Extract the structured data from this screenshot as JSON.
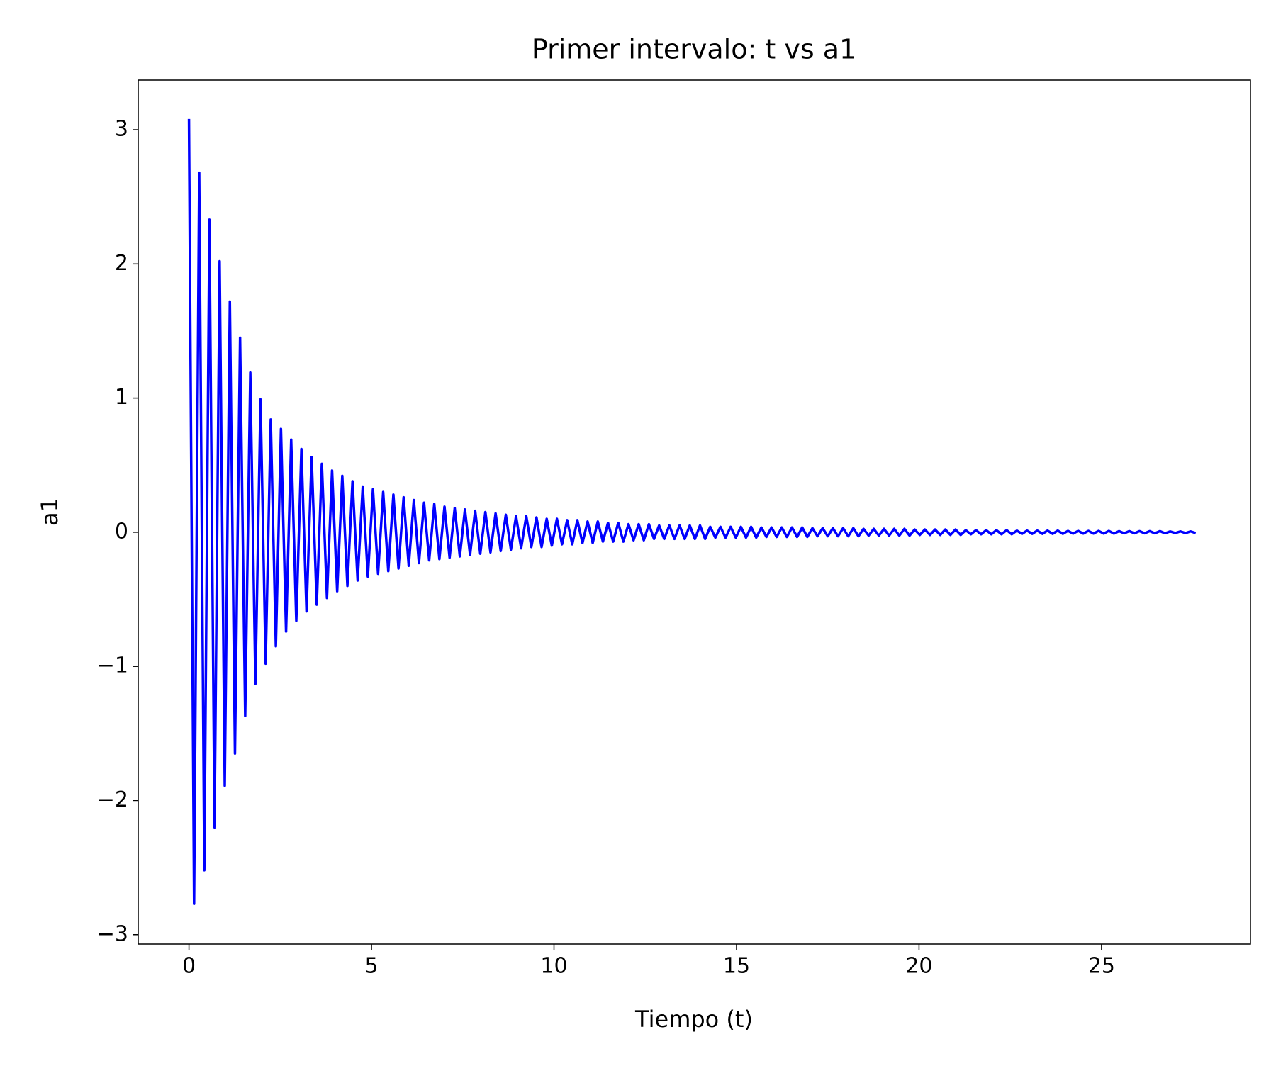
{
  "chart_data": {
    "type": "line",
    "title": "Primer intervalo: t vs a1",
    "x_label": "Tiempo (t)",
    "y_label": "a1",
    "xlim": [
      -1.39,
      29.08
    ],
    "ylim": [
      -3.07,
      3.37
    ],
    "xticks": [
      0,
      5,
      10,
      15,
      20,
      25
    ],
    "yticks": [
      {
        "value": -3,
        "label": "−3"
      },
      {
        "value": -2,
        "label": "−2"
      },
      {
        "value": -1,
        "label": "−1"
      },
      0,
      1,
      2,
      3
    ],
    "x": [
      0,
      0.14,
      0.28,
      0.42,
      0.56,
      0.7,
      0.84,
      0.98,
      1.12,
      1.26,
      1.4,
      1.54,
      1.68,
      1.82,
      1.96,
      2.1,
      2.24,
      2.38,
      2.52,
      2.66,
      2.8,
      2.94,
      3.08,
      3.22,
      3.36,
      3.5,
      3.64,
      3.78,
      3.92,
      4.06,
      4.2,
      4.34,
      4.48,
      4.62,
      4.76,
      4.9,
      5.04,
      5.18,
      5.32,
      5.46,
      5.6,
      5.74,
      5.88,
      6.02,
      6.16,
      6.3,
      6.44,
      6.58,
      6.72,
      6.86,
      7,
      7.14,
      7.28,
      7.42,
      7.56,
      7.7,
      7.84,
      7.98,
      8.12,
      8.26,
      8.4,
      8.54,
      8.68,
      8.82,
      8.96,
      9.1,
      9.24,
      9.38,
      9.52,
      9.66,
      9.8,
      9.94,
      10.08,
      10.22,
      10.36,
      10.5,
      10.64,
      10.78,
      10.92,
      11.06,
      11.2,
      11.34,
      11.48,
      11.62,
      11.76,
      11.9,
      12.04,
      12.18,
      12.32,
      12.46,
      12.6,
      12.74,
      12.88,
      13.02,
      13.16,
      13.3,
      13.44,
      13.58,
      13.72,
      13.86,
      14,
      14.14,
      14.28,
      14.42,
      14.56,
      14.7,
      14.84,
      14.98,
      15.12,
      15.26,
      15.4,
      15.54,
      15.68,
      15.82,
      15.96,
      16.1,
      16.24,
      16.38,
      16.52,
      16.66,
      16.8,
      16.94,
      17.08,
      17.22,
      17.36,
      17.5,
      17.64,
      17.78,
      17.92,
      18.06,
      18.2,
      18.34,
      18.48,
      18.62,
      18.76,
      18.9,
      19.04,
      19.18,
      19.32,
      19.46,
      19.6,
      19.74,
      19.88,
      20.02,
      20.16,
      20.3,
      20.44,
      20.58,
      20.72,
      20.86,
      21,
      21.14,
      21.28,
      21.42,
      21.56,
      21.7,
      21.84,
      21.98,
      22.12,
      22.26,
      22.4,
      22.54,
      22.68,
      22.82,
      22.96,
      23.1,
      23.24,
      23.38,
      23.52,
      23.66,
      23.8,
      23.94,
      24.08,
      24.22,
      24.36,
      24.5,
      24.64,
      24.78,
      24.92,
      25.06,
      25.2,
      25.34,
      25.48,
      25.62,
      25.76,
      25.9,
      26.04,
      26.18,
      26.32,
      26.46,
      26.6,
      26.74,
      26.88,
      27.02,
      27.16,
      27.3,
      27.44,
      27.58
    ],
    "series": [
      {
        "color": "#0000ff",
        "values": [
          3.08,
          -2.77,
          2.68,
          -2.52,
          2.33,
          -2.2,
          2.02,
          -1.89,
          1.72,
          -1.65,
          1.45,
          -1.37,
          1.19,
          -1.13,
          0.99,
          -0.98,
          0.84,
          -0.85,
          0.77,
          -0.74,
          0.69,
          -0.66,
          0.62,
          -0.59,
          0.56,
          -0.54,
          0.51,
          -0.49,
          0.46,
          -0.44,
          0.42,
          -0.4,
          0.38,
          -0.36,
          0.34,
          -0.33,
          0.32,
          -0.31,
          0.3,
          -0.29,
          0.28,
          -0.27,
          0.26,
          -0.25,
          0.24,
          -0.23,
          0.22,
          -0.21,
          0.21,
          -0.2,
          0.19,
          -0.19,
          0.18,
          -0.18,
          0.17,
          -0.17,
          0.16,
          -0.16,
          0.15,
          -0.15,
          0.14,
          -0.14,
          0.13,
          -0.13,
          0.12,
          -0.12,
          0.12,
          -0.11,
          0.11,
          -0.11,
          0.1,
          -0.1,
          0.1,
          -0.09,
          0.09,
          -0.09,
          0.09,
          -0.08,
          0.08,
          -0.08,
          0.08,
          -0.07,
          0.07,
          -0.07,
          0.07,
          -0.07,
          0.06,
          -0.06,
          0.06,
          -0.06,
          0.06,
          -0.05,
          0.05,
          -0.05,
          0.05,
          -0.05,
          0.05,
          -0.05,
          0.05,
          -0.05,
          0.05,
          -0.05,
          0.04,
          -0.04,
          0.04,
          -0.04,
          0.04,
          -0.04,
          0.04,
          -0.04,
          0.04,
          -0.04,
          0.035,
          -0.035,
          0.035,
          -0.035,
          0.035,
          -0.035,
          0.035,
          -0.035,
          0.035,
          -0.035,
          0.03,
          -0.03,
          0.03,
          -0.03,
          0.03,
          -0.03,
          0.03,
          -0.03,
          0.03,
          -0.03,
          0.025,
          -0.025,
          0.025,
          -0.025,
          0.025,
          -0.025,
          0.025,
          -0.025,
          0.025,
          -0.025,
          0.02,
          -0.02,
          0.02,
          -0.02,
          0.02,
          -0.02,
          0.02,
          -0.02,
          0.02,
          -0.02,
          0.015,
          -0.015,
          0.015,
          -0.015,
          0.015,
          -0.015,
          0.015,
          -0.015,
          0.015,
          -0.015,
          0.012,
          -0.012,
          0.012,
          -0.012,
          0.012,
          -0.012,
          0.012,
          -0.012,
          0.012,
          -0.012,
          0.01,
          -0.01,
          0.01,
          -0.01,
          0.01,
          -0.01,
          0.01,
          -0.01,
          0.01,
          -0.01,
          0.008,
          -0.008,
          0.008,
          -0.008,
          0.008,
          -0.008,
          0.008,
          -0.008,
          0.008,
          -0.008,
          0.006,
          -0.006,
          0.006,
          -0.006,
          0.006,
          -0.006
        ]
      }
    ]
  }
}
